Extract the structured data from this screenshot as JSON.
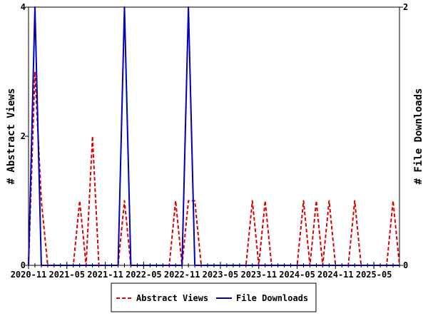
{
  "chart_data": {
    "type": "line",
    "title": "",
    "xlabel": "",
    "ylabel": "# Abstract Views",
    "y2label": "# File Downloads",
    "ylim": [
      0,
      4
    ],
    "y2lim": [
      0,
      2
    ],
    "yticks": [
      "0",
      "2",
      "4"
    ],
    "y2ticks": [
      "0",
      "2"
    ],
    "xtick_labels": [
      "2020-11",
      "2021-05",
      "2021-11",
      "2022-05",
      "2022-11",
      "2023-05",
      "2023-11",
      "2024-05",
      "2024-11",
      "2025-05"
    ],
    "x": [
      "2020-11",
      "2020-12",
      "2021-01",
      "2021-02",
      "2021-03",
      "2021-04",
      "2021-05",
      "2021-06",
      "2021-07",
      "2021-08",
      "2021-09",
      "2021-10",
      "2021-11",
      "2021-12",
      "2022-01",
      "2022-02",
      "2022-03",
      "2022-04",
      "2022-05",
      "2022-06",
      "2022-07",
      "2022-08",
      "2022-09",
      "2022-10",
      "2022-11",
      "2022-12",
      "2023-01",
      "2023-02",
      "2023-03",
      "2023-04",
      "2023-05",
      "2023-06",
      "2023-07",
      "2023-08",
      "2023-09",
      "2023-10",
      "2023-11",
      "2023-12",
      "2024-01",
      "2024-02",
      "2024-03",
      "2024-04",
      "2024-05",
      "2024-06",
      "2024-07",
      "2024-08",
      "2024-09",
      "2024-10",
      "2024-11",
      "2024-12",
      "2025-01",
      "2025-02",
      "2025-03",
      "2025-04",
      "2025-05",
      "2025-06",
      "2025-07",
      "2025-08",
      "2025-09"
    ],
    "series": [
      {
        "name": "Abstract Views",
        "axis": "left",
        "color": "#dd0000",
        "style": "dashed",
        "values": [
          0,
          3,
          1,
          0,
          0,
          0,
          0,
          0,
          1,
          0,
          2,
          0,
          0,
          0,
          0,
          1,
          0,
          0,
          0,
          0,
          0,
          0,
          0,
          1,
          0,
          1,
          1,
          0,
          0,
          0,
          0,
          0,
          0,
          0,
          0,
          1,
          0,
          1,
          0,
          0,
          0,
          0,
          0,
          1,
          0,
          1,
          0,
          1,
          0,
          0,
          0,
          1,
          0,
          0,
          0,
          0,
          0,
          1,
          0
        ]
      },
      {
        "name": "File Downloads",
        "axis": "right",
        "color": "#0000bb",
        "style": "solid",
        "values": [
          0,
          2,
          0,
          0,
          0,
          0,
          0,
          0,
          0,
          0,
          0,
          0,
          0,
          0,
          0,
          2,
          0,
          0,
          0,
          0,
          0,
          0,
          0,
          0,
          0,
          2,
          0,
          0,
          0,
          0,
          0,
          0,
          0,
          0,
          0,
          0,
          0,
          0,
          0,
          0,
          0,
          0,
          0,
          0,
          0,
          0,
          0,
          0,
          0,
          0,
          0,
          0,
          0,
          0,
          0,
          0,
          0,
          0,
          0
        ]
      }
    ],
    "legend": "bottom-center"
  }
}
